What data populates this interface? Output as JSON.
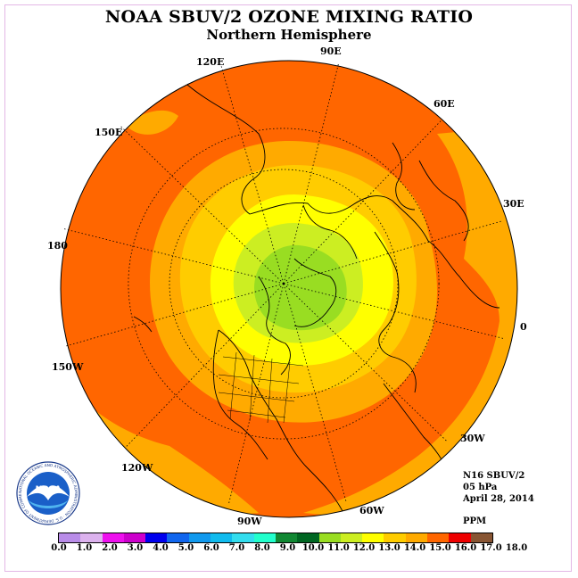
{
  "header": {
    "title": "NOAA SBUV/2 OZONE MIXING RATIO",
    "subtitle": "Northern Hemisphere"
  },
  "map": {
    "projection": "polar stereographic",
    "hemisphere": "north",
    "graticule": "dotted",
    "longitude_labels": [
      {
        "id": "lon-90e",
        "text": "90E"
      },
      {
        "id": "lon-120e",
        "text": "120E"
      },
      {
        "id": "lon-60e",
        "text": "60E"
      },
      {
        "id": "lon-150e",
        "text": "150E"
      },
      {
        "id": "lon-30e",
        "text": "30E"
      },
      {
        "id": "lon-180",
        "text": "180"
      },
      {
        "id": "lon-0",
        "text": "0"
      },
      {
        "id": "lon-150w",
        "text": "150W"
      },
      {
        "id": "lon-30w",
        "text": "30W"
      },
      {
        "id": "lon-120w",
        "text": "120W"
      },
      {
        "id": "lon-60w",
        "text": "60W"
      },
      {
        "id": "lon-90w",
        "text": "90W"
      }
    ]
  },
  "info": {
    "instrument": "N16 SBUV/2",
    "level": "05 hPa",
    "date": "April 28, 2014",
    "units": "PPM"
  },
  "colorbar": {
    "colors": [
      "#b98ce8",
      "#dcb2ee",
      "#ee11ee",
      "#cc00cc",
      "#0000ee",
      "#1166ee",
      "#1199ee",
      "#11bbee",
      "#33ddee",
      "#22ffcc",
      "#118833",
      "#006622",
      "#99dd22",
      "#ccee22",
      "#ffff00",
      "#ffcc00",
      "#ffaa00",
      "#ff6600",
      "#ee0000",
      "#885533"
    ],
    "tick_labels": [
      "0.0",
      "1.0",
      "2.0",
      "3.0",
      "4.0",
      "5.0",
      "6.0",
      "7.0",
      "8.0",
      "9.0",
      "10.0",
      "11.0",
      "12.0",
      "13.0",
      "14.0",
      "15.0",
      "16.0",
      "17.0",
      "18.0"
    ]
  },
  "logo": {
    "text": "NOAA",
    "ring_text": "NATIONAL OCEANIC AND ATMOSPHERIC ADMINISTRATION · U.S. DEPARTMENT OF COMMERCE"
  }
}
